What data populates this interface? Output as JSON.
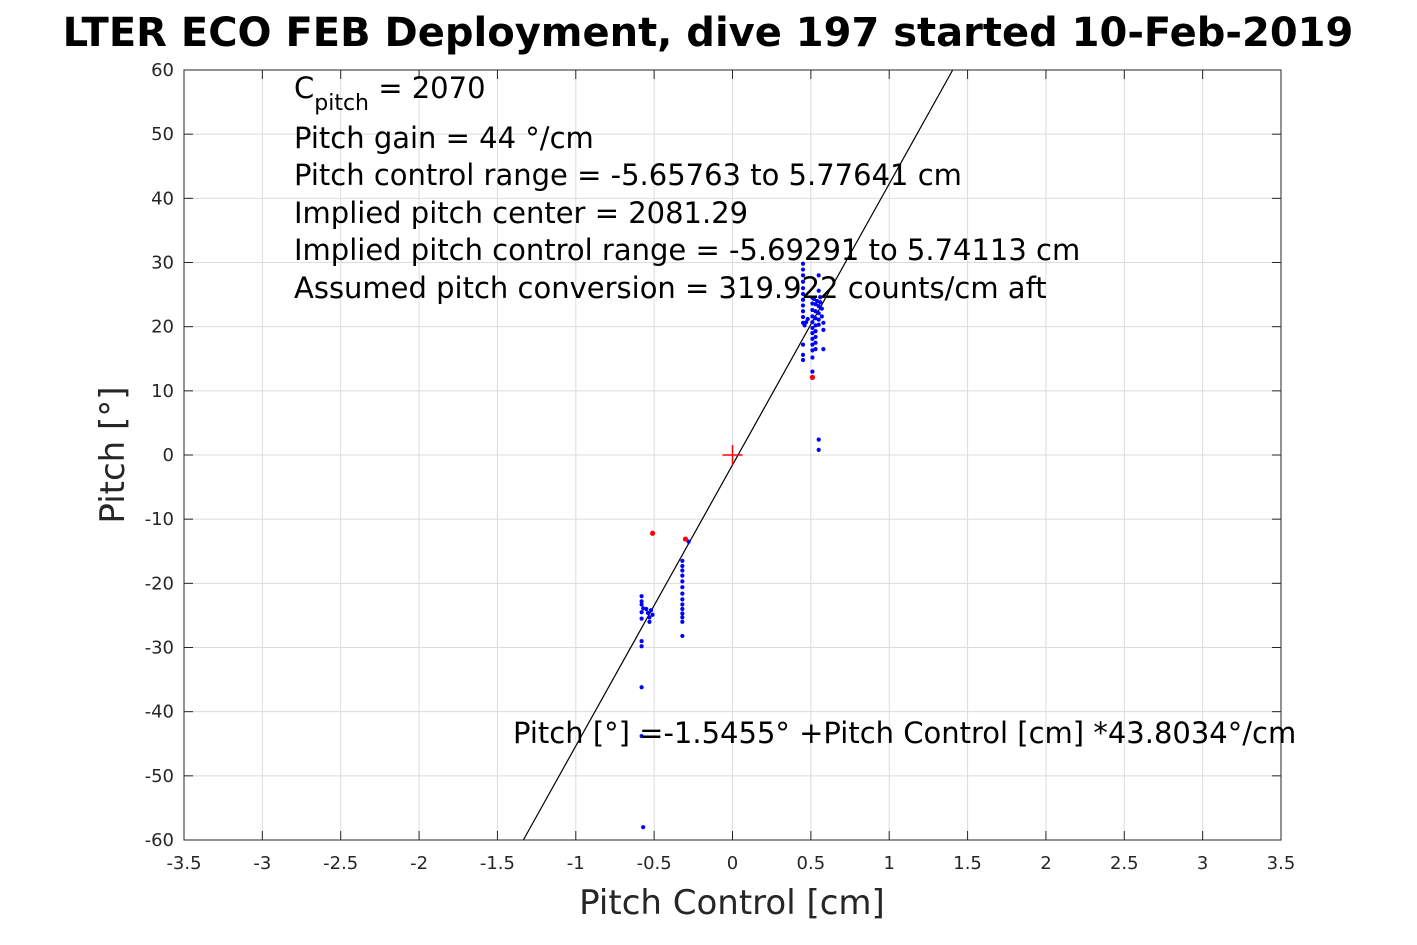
{
  "chart_data": {
    "type": "scatter",
    "title": "LTER ECO FEB Deployment, dive 197 started 10-Feb-2019",
    "xlabel": "Pitch Control [cm]",
    "ylabel": "Pitch [°]",
    "xlim": [
      -3.5,
      3.5
    ],
    "ylim": [
      -60,
      60
    ],
    "xticks": [
      -3.5,
      -3,
      -2.5,
      -2,
      -1.5,
      -1,
      -0.5,
      0,
      0.5,
      1,
      1.5,
      2,
      2.5,
      3,
      3.5
    ],
    "yticks": [
      -60,
      -50,
      -40,
      -30,
      -20,
      -10,
      0,
      10,
      20,
      30,
      40,
      50,
      60
    ],
    "grid": true,
    "annotations": {
      "c_pitch_base": "C",
      "c_pitch_sub": "pitch",
      "c_pitch_rest": " = 2070",
      "pitch_gain": "Pitch gain = 44 °/cm",
      "control_range": "Pitch control range = -5.65763 to 5.77641 cm",
      "implied_center": "Implied pitch center = 2081.29",
      "implied_range": "Implied pitch control range = -5.69291 to 5.74113 cm",
      "conversion": "Assumed pitch conversion = 319.922 counts/cm aft",
      "fit_equation": "Pitch [°] =-1.5455° +Pitch Control [cm] *43.8034°/cm"
    },
    "fit_line": {
      "intercept": -1.5455,
      "slope": 43.8034,
      "color": "#000000"
    },
    "center_marker": {
      "x": 0,
      "y": 0,
      "color": "#ff0000",
      "shape": "plus"
    },
    "series": [
      {
        "color": "#0000ff",
        "points": [
          [
            -0.58,
            -22
          ],
          [
            -0.58,
            -22.8
          ],
          [
            -0.58,
            -23.3
          ],
          [
            -0.57,
            -23.9
          ],
          [
            -0.58,
            -24.5
          ],
          [
            -0.58,
            -25.5
          ],
          [
            -0.55,
            -24
          ],
          [
            -0.54,
            -24.6
          ],
          [
            -0.53,
            -25.3
          ],
          [
            -0.52,
            -24.2
          ],
          [
            -0.51,
            -24.9
          ],
          [
            -0.53,
            -26
          ],
          [
            -0.58,
            -29
          ],
          [
            -0.58,
            -29.8
          ],
          [
            -0.58,
            -36.2
          ],
          [
            -0.58,
            -43.8
          ],
          [
            -0.57,
            -58
          ],
          [
            -0.32,
            -16.5
          ],
          [
            -0.32,
            -17.3
          ],
          [
            -0.32,
            -18
          ],
          [
            -0.32,
            -18.8
          ],
          [
            -0.32,
            -19.7
          ],
          [
            -0.32,
            -20.6
          ],
          [
            -0.32,
            -21.6
          ],
          [
            -0.32,
            -22.5
          ],
          [
            -0.32,
            -23.3
          ],
          [
            -0.32,
            -24
          ],
          [
            -0.32,
            -24.7
          ],
          [
            -0.32,
            -25.3
          ],
          [
            -0.32,
            -26
          ],
          [
            -0.32,
            -28.2
          ],
          [
            -0.28,
            -13.5
          ],
          [
            0.45,
            29.8
          ],
          [
            0.45,
            28.9
          ],
          [
            0.45,
            28
          ],
          [
            0.45,
            27
          ],
          [
            0.45,
            26
          ],
          [
            0.45,
            25.1
          ],
          [
            0.45,
            24.2
          ],
          [
            0.45,
            23.3
          ],
          [
            0.45,
            22.4
          ],
          [
            0.45,
            21.5
          ],
          [
            0.45,
            20.6
          ],
          [
            0.46,
            20.2
          ],
          [
            0.47,
            20.7
          ],
          [
            0.48,
            21.2
          ],
          [
            0.45,
            17.2
          ],
          [
            0.45,
            15.6
          ],
          [
            0.45,
            14.8
          ],
          [
            0.51,
            24.5
          ],
          [
            0.51,
            23.6
          ],
          [
            0.51,
            22.6
          ],
          [
            0.51,
            21.6
          ],
          [
            0.51,
            20.7
          ],
          [
            0.51,
            19.8
          ],
          [
            0.51,
            19
          ],
          [
            0.51,
            18.1
          ],
          [
            0.51,
            17.2
          ],
          [
            0.51,
            16.3
          ],
          [
            0.51,
            15.2
          ],
          [
            0.51,
            13
          ],
          [
            0.52,
            24.3
          ],
          [
            0.53,
            23.5
          ],
          [
            0.53,
            22.4
          ],
          [
            0.53,
            21.3
          ],
          [
            0.53,
            20.2
          ],
          [
            0.53,
            19.3
          ],
          [
            0.53,
            18.4
          ],
          [
            0.53,
            17.5
          ],
          [
            0.53,
            16.5
          ],
          [
            0.54,
            24
          ],
          [
            0.55,
            23.2
          ],
          [
            0.55,
            22.1
          ],
          [
            0.55,
            21.1
          ],
          [
            0.55,
            20.3
          ],
          [
            0.56,
            24.6
          ],
          [
            0.56,
            23.8
          ],
          [
            0.55,
            25.6
          ],
          [
            0.55,
            28
          ],
          [
            0.57,
            21.6
          ],
          [
            0.57,
            22.8
          ],
          [
            0.58,
            20.6
          ],
          [
            0.58,
            19.5
          ],
          [
            0.58,
            16.5
          ],
          [
            0.55,
            2.4
          ],
          [
            0.55,
            0.8
          ]
        ]
      },
      {
        "color": "#ff0000",
        "points": [
          [
            -0.51,
            -12.2
          ],
          [
            -0.3,
            -13.1
          ],
          [
            0.51,
            12.1
          ]
        ]
      }
    ]
  }
}
